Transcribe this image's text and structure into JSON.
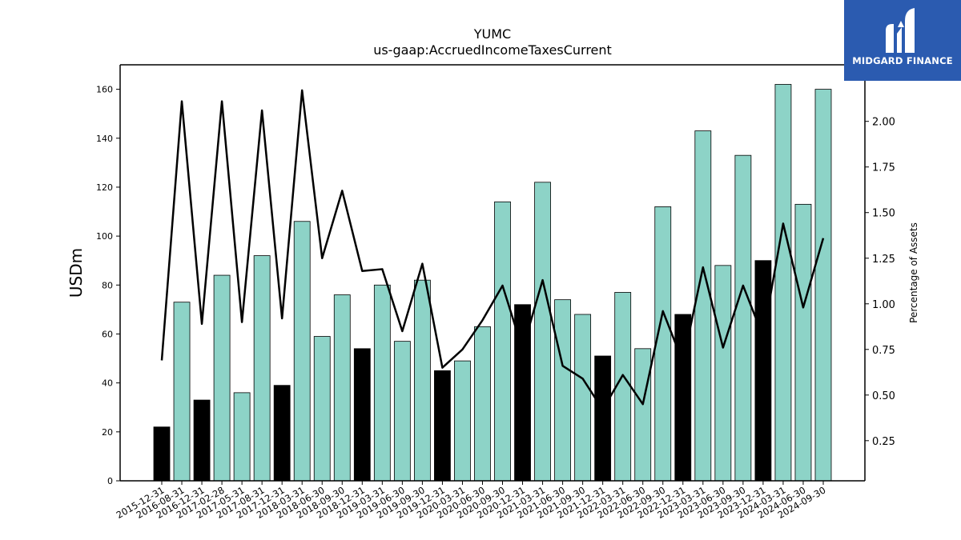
{
  "chart_data": {
    "type": "bar",
    "title": "YUMC",
    "subtitle": "us-gaap:AccruedIncomeTaxesCurrent",
    "ylabel": "USDm",
    "y2label": "Percentage of Assets",
    "ylim": [
      0,
      170
    ],
    "y2lim": [
      0.03,
      2.31
    ],
    "yticks": [
      0,
      20,
      40,
      60,
      80,
      100,
      120,
      140,
      160
    ],
    "y2ticks": [
      "0.25",
      "0.50",
      "0.75",
      "1.00",
      "1.25",
      "1.50",
      "1.75",
      "2.00"
    ],
    "categories": [
      "2015-12-31",
      "2016-08-31",
      "2016-12-31",
      "2017-02-28",
      "2017-05-31",
      "2017-08-31",
      "2017-12-31",
      "2018-03-31",
      "2018-06-30",
      "2018-09-30",
      "2018-12-31",
      "2019-03-31",
      "2019-06-30",
      "2019-09-30",
      "2019-12-31",
      "2020-03-31",
      "2020-06-30",
      "2020-09-30",
      "2020-12-31",
      "2021-03-31",
      "2021-06-30",
      "2021-09-30",
      "2021-12-31",
      "2022-03-31",
      "2022-06-30",
      "2022-09-30",
      "2022-12-31",
      "2023-03-31",
      "2023-06-30",
      "2023-09-30",
      "2023-12-31",
      "2024-03-31",
      "2024-06-30",
      "2024-09-30"
    ],
    "series": [
      {
        "values": [
          22,
          73,
          33,
          84,
          36,
          92,
          39,
          106,
          59,
          76,
          54,
          80,
          57,
          82,
          45,
          49,
          63,
          114,
          72,
          122,
          74,
          68,
          51,
          77,
          54,
          112,
          68,
          143,
          88,
          133,
          90,
          162,
          113,
          160
        ],
        "year_end": [
          true,
          false,
          true,
          false,
          false,
          false,
          true,
          false,
          false,
          false,
          true,
          false,
          false,
          false,
          true,
          false,
          false,
          false,
          true,
          false,
          false,
          false,
          true,
          false,
          false,
          false,
          true,
          false,
          false,
          false,
          true,
          false,
          false,
          false
        ]
      },
      {
        "axis": "right",
        "values": [
          0.69,
          2.11,
          0.89,
          2.11,
          0.9,
          2.06,
          0.92,
          2.17,
          1.25,
          1.62,
          1.18,
          1.19,
          0.85,
          1.22,
          0.65,
          0.75,
          0.91,
          1.1,
          0.75,
          1.13,
          0.66,
          0.59,
          0.42,
          0.61,
          0.45,
          0.96,
          0.68,
          1.2,
          0.76,
          1.1,
          0.82,
          1.44,
          0.98,
          1.36
        ]
      }
    ],
    "colors": {
      "bar_regular": "#8dd3c7",
      "bar_year_end": "#000000",
      "line": "#000000"
    },
    "grid": false
  },
  "logo": {
    "text": "MIDGARD FINANCE",
    "background": "#2b5bb0"
  }
}
